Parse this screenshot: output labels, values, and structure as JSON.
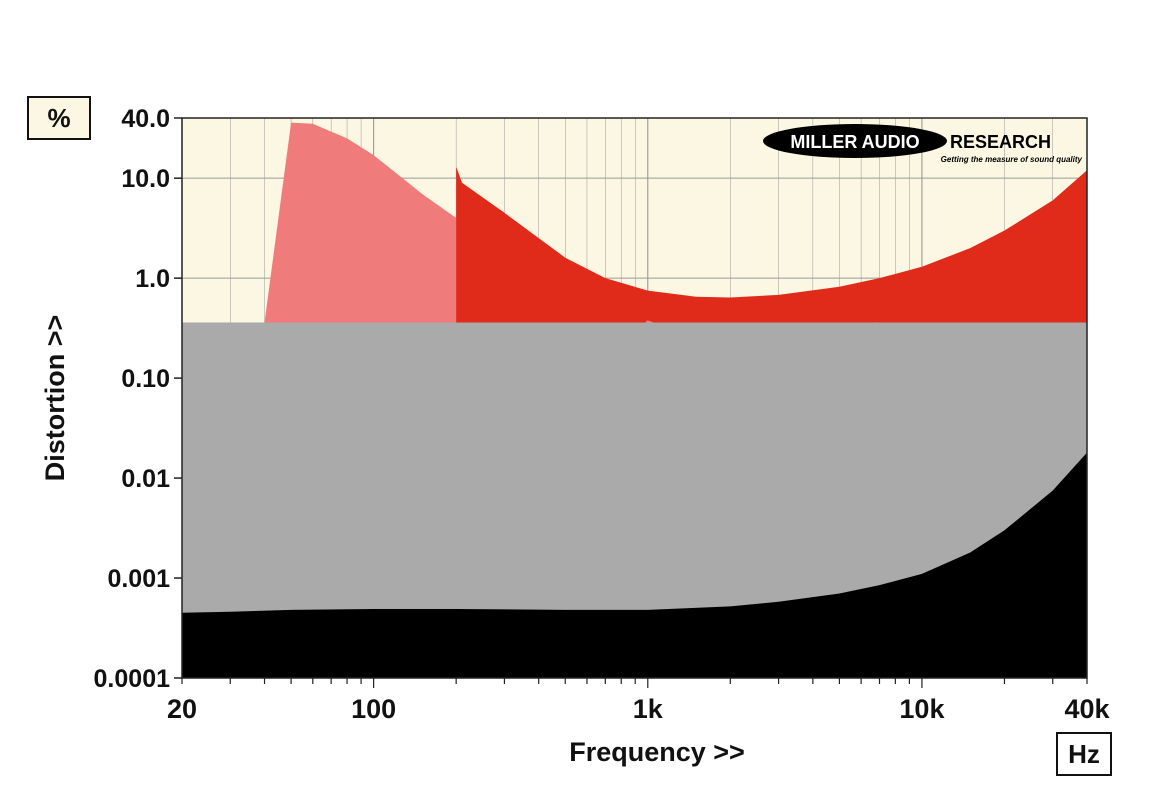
{
  "chart_data": {
    "type": "area",
    "xlabel": "Frequency >>",
    "ylabel": "Distortion >>",
    "x_unit": "Hz",
    "y_unit": "%",
    "x_scale": "log",
    "y_scale": "log",
    "xlim": [
      20,
      40000
    ],
    "ylim": [
      0.0001,
      40
    ],
    "x_ticks": [
      {
        "value": 20,
        "label": "20"
      },
      {
        "value": 100,
        "label": "100"
      },
      {
        "value": 1000,
        "label": "1k"
      },
      {
        "value": 10000,
        "label": "10k"
      },
      {
        "value": 40000,
        "label": "40k"
      }
    ],
    "y_ticks": [
      {
        "value": 40,
        "label": "40.0"
      },
      {
        "value": 10,
        "label": "10.0"
      },
      {
        "value": 1,
        "label": "1.0"
      },
      {
        "value": 0.1,
        "label": "0.10"
      },
      {
        "value": 0.01,
        "label": "0.01"
      },
      {
        "value": 0.001,
        "label": "0.001"
      },
      {
        "value": 0.0001,
        "label": "0.0001"
      }
    ],
    "grid": true,
    "series": [
      {
        "color": "#f07b7b",
        "x": [
          40,
          50,
          60,
          80,
          100,
          150,
          200,
          300,
          500,
          700,
          1000,
          2000,
          3000,
          5000,
          7000,
          10000,
          15000,
          20000,
          30000,
          40000
        ],
        "values": [
          0.36,
          36,
          35,
          25,
          17,
          7,
          4,
          1.8,
          0.7,
          0.45,
          0.36,
          0.36,
          0.36,
          0.36,
          0.36,
          0.55,
          0.9,
          1.3,
          1.9,
          2.5
        ]
      },
      {
        "color": "#e02a1a",
        "x": [
          200,
          210,
          300,
          500,
          700,
          1000,
          1500,
          2000,
          3000,
          5000,
          7000,
          10000,
          15000,
          20000,
          30000,
          40000
        ],
        "values": [
          13,
          9,
          4.5,
          1.6,
          1.0,
          0.75,
          0.65,
          0.64,
          0.68,
          0.82,
          1.0,
          1.3,
          2.0,
          3.0,
          6.0,
          12
        ]
      },
      {
        "color": "#f07b7b",
        "style": "dotted",
        "x": [
          1000,
          1500,
          2000,
          3000,
          5000,
          7000
        ],
        "values": [
          0.36,
          0.25,
          0.21,
          0.2,
          0.25,
          0.36
        ]
      },
      {
        "color": "#aaaaaa",
        "x": [
          20,
          40000
        ],
        "values": [
          0.36,
          0.36
        ]
      },
      {
        "color": "#000000",
        "x": [
          20,
          30,
          50,
          100,
          200,
          500,
          1000,
          2000,
          3000,
          5000,
          7000,
          10000,
          15000,
          20000,
          30000,
          40000
        ],
        "values": [
          0.00045,
          0.00046,
          0.00048,
          0.00049,
          0.00049,
          0.00048,
          0.00048,
          0.00052,
          0.00058,
          0.0007,
          0.00085,
          0.0011,
          0.0018,
          0.003,
          0.0075,
          0.018
        ]
      }
    ],
    "logo": {
      "text": "MILLER AUDIO RESEARCH",
      "tagline": "Getting the measure of sound quality",
      "placement": "top-right"
    },
    "colors": {
      "background": "#fbf7e3",
      "grid": "#999999",
      "gray_floor": "#aaaaaa",
      "light_red": "#f07b7b",
      "dark_red": "#e02a1a",
      "black": "#000000"
    }
  }
}
